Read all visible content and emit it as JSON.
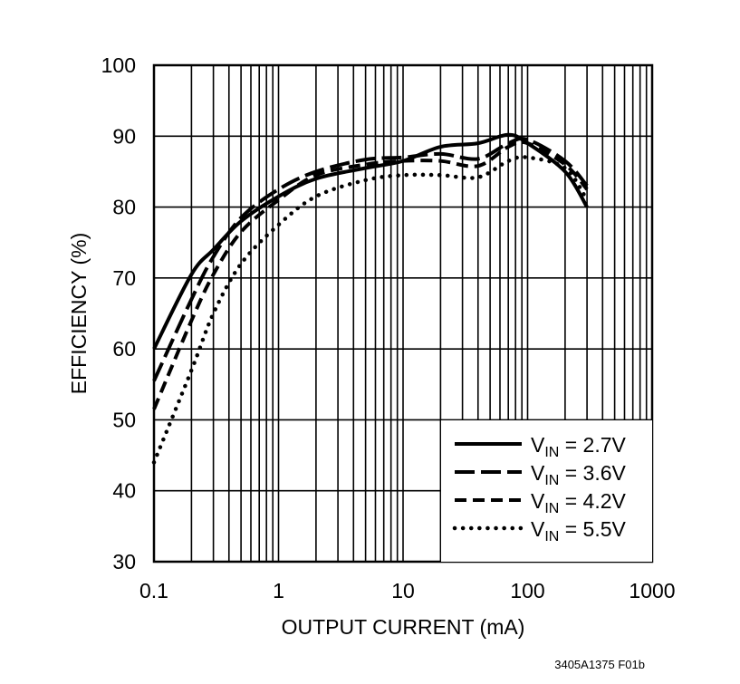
{
  "chart_data": {
    "type": "line",
    "xlabel": "OUTPUT CURRENT (mA)",
    "ylabel": "EFFICIENCY (%)",
    "xscale": "log",
    "xlim": [
      0.1,
      1000
    ],
    "ylim": [
      30,
      100
    ],
    "xticks": [
      "0.1",
      "1",
      "10",
      "100",
      "1000"
    ],
    "yticks": [
      "30",
      "40",
      "50",
      "60",
      "70",
      "80",
      "90",
      "100"
    ],
    "grid": true,
    "legend_position": "bottom-right",
    "series": [
      {
        "name": "V_IN = 2.7V",
        "label_main": "V",
        "label_sub": "IN",
        "label_rest": " = 2.7V",
        "style": "solid",
        "x": [
          0.1,
          0.2,
          0.3,
          0.5,
          1,
          2,
          5,
          10,
          20,
          40,
          70,
          100,
          200,
          300
        ],
        "y": [
          60,
          70.5,
          74,
          78,
          81.5,
          84,
          85.5,
          86.5,
          88.5,
          89,
          90.2,
          89,
          85,
          80
        ]
      },
      {
        "name": "V_IN = 3.6V",
        "label_main": "V",
        "label_sub": "IN",
        "label_rest": " = 3.6V",
        "style": "long-dash",
        "x": [
          0.1,
          0.2,
          0.3,
          0.5,
          1,
          2,
          5,
          10,
          20,
          40,
          70,
          100,
          200,
          300
        ],
        "y": [
          55.5,
          67,
          73,
          78.5,
          82.5,
          85,
          86.7,
          87,
          87.5,
          86.8,
          89,
          89.5,
          86.5,
          83
        ]
      },
      {
        "name": "V_IN = 4.2V",
        "label_main": "V",
        "label_sub": "IN",
        "label_rest": " = 4.2V",
        "style": "short-dash",
        "x": [
          0.1,
          0.2,
          0.3,
          0.5,
          1,
          2,
          5,
          10,
          20,
          40,
          70,
          100,
          200,
          300
        ],
        "y": [
          51.5,
          64,
          70.5,
          76.5,
          81,
          84.5,
          86,
          86.5,
          86.5,
          85.8,
          88.5,
          89,
          86,
          82.5
        ]
      },
      {
        "name": "V_IN = 5.5V",
        "label_main": "V",
        "label_sub": "IN",
        "label_rest": " = 5.5V",
        "style": "dotted",
        "x": [
          0.1,
          0.2,
          0.3,
          0.5,
          1,
          2,
          5,
          10,
          20,
          40,
          70,
          100,
          200,
          300
        ],
        "y": [
          44,
          57,
          65,
          72,
          77.5,
          81.5,
          83.8,
          84.5,
          84.5,
          84.2,
          86.5,
          87,
          85.5,
          81
        ]
      }
    ]
  },
  "footer_code": "3405A1375 F01b"
}
